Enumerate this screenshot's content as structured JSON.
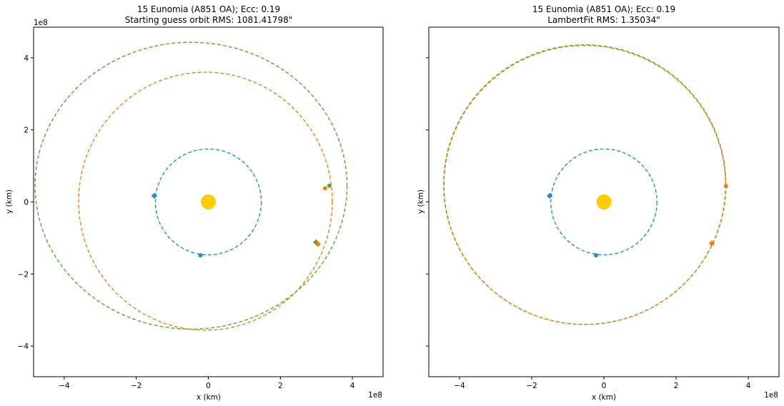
{
  "chart_data": [
    {
      "type": "scatter",
      "title": [
        "15 Eunomia (A851 OA); Ecc: 0.19",
        "Starting guess orbit RMS: 1081.41798\""
      ],
      "xlabel": "x (km)",
      "ylabel": "y (km)",
      "xlim": [
        -4.85,
        4.85
      ],
      "ylim": [
        -4.85,
        4.85
      ],
      "x_ticks": [
        -4,
        -2,
        0,
        2,
        4
      ],
      "y_ticks": [
        -4,
        -2,
        0,
        2,
        4
      ],
      "x_tick_labels": [
        "−4",
        "−2",
        "0",
        "2",
        "4"
      ],
      "y_tick_labels": [
        "−4",
        "−2",
        "0",
        "2",
        "4"
      ],
      "show_y_tick_labels": true,
      "offset_x": "1e8",
      "offset_y": "1e8",
      "grid": false,
      "sun": {
        "x": 0,
        "y": 0,
        "color": "#ffcc00"
      },
      "orbits": [
        {
          "color": "#1f8fce",
          "center": [
            0,
            0
          ],
          "a": 1.47,
          "b": 1.47
        },
        {
          "color": "#f07d1a",
          "center": [
            -0.08,
            0.02
          ],
          "a": 3.52,
          "b": 3.58
        },
        {
          "color": "#55aa2b",
          "center": [
            -0.48,
            0.45
          ],
          "a": 4.33,
          "b": 3.98
        }
      ],
      "markers": [
        {
          "x": -1.5,
          "y": 0.17,
          "shape": "diamond",
          "color": "#1f8fce"
        },
        {
          "x": -0.22,
          "y": -1.48,
          "shape": "circle",
          "color": "#1f8fce"
        },
        {
          "x": 3.24,
          "y": 0.38,
          "shape": "circle",
          "color": "#f07d1a"
        },
        {
          "x": 3.36,
          "y": 0.45,
          "shape": "circle",
          "color": "#55aa2b"
        },
        {
          "x": 2.99,
          "y": -1.12,
          "shape": "diamond",
          "color": "#55aa2b"
        },
        {
          "x": 3.04,
          "y": -1.17,
          "shape": "diamond",
          "color": "#f07d1a"
        }
      ]
    },
    {
      "type": "scatter",
      "title": [
        "15 Eunomia (A851 OA); Ecc: 0.19",
        "LambertFit RMS: 1.35034\""
      ],
      "xlabel": "x (km)",
      "ylabel": "y (km)",
      "xlim": [
        -4.85,
        4.85
      ],
      "ylim": [
        -4.85,
        4.85
      ],
      "x_ticks": [
        -4,
        -2,
        0,
        2,
        4
      ],
      "y_ticks": [
        -4,
        -2,
        0,
        2,
        4
      ],
      "x_tick_labels": [
        "−4",
        "−2",
        "0",
        "2",
        "4"
      ],
      "y_tick_labels": [
        "",
        "",
        "",
        "",
        ""
      ],
      "show_y_tick_labels": false,
      "offset_x": "1e8",
      "offset_y": "",
      "grid": false,
      "sun": {
        "x": 0,
        "y": 0,
        "color": "#ffcc00"
      },
      "orbits": [
        {
          "color": "#1f8fce",
          "center": [
            0,
            0
          ],
          "a": 1.47,
          "b": 1.47
        },
        {
          "color": "#55aa2b",
          "center": [
            -0.53,
            0.48
          ],
          "a": 3.91,
          "b": 3.88
        },
        {
          "color": "#f07d1a",
          "center": [
            -0.53,
            0.47
          ],
          "a": 3.9,
          "b": 3.87
        }
      ],
      "markers": [
        {
          "x": -1.5,
          "y": 0.17,
          "shape": "diamond",
          "color": "#1f8fce"
        },
        {
          "x": -0.22,
          "y": -1.48,
          "shape": "circle",
          "color": "#1f8fce"
        },
        {
          "x": 3.38,
          "y": 0.44,
          "shape": "circle",
          "color": "#f07d1a"
        },
        {
          "x": 2.99,
          "y": -1.15,
          "shape": "diamond",
          "color": "#f07d1a"
        }
      ]
    }
  ]
}
